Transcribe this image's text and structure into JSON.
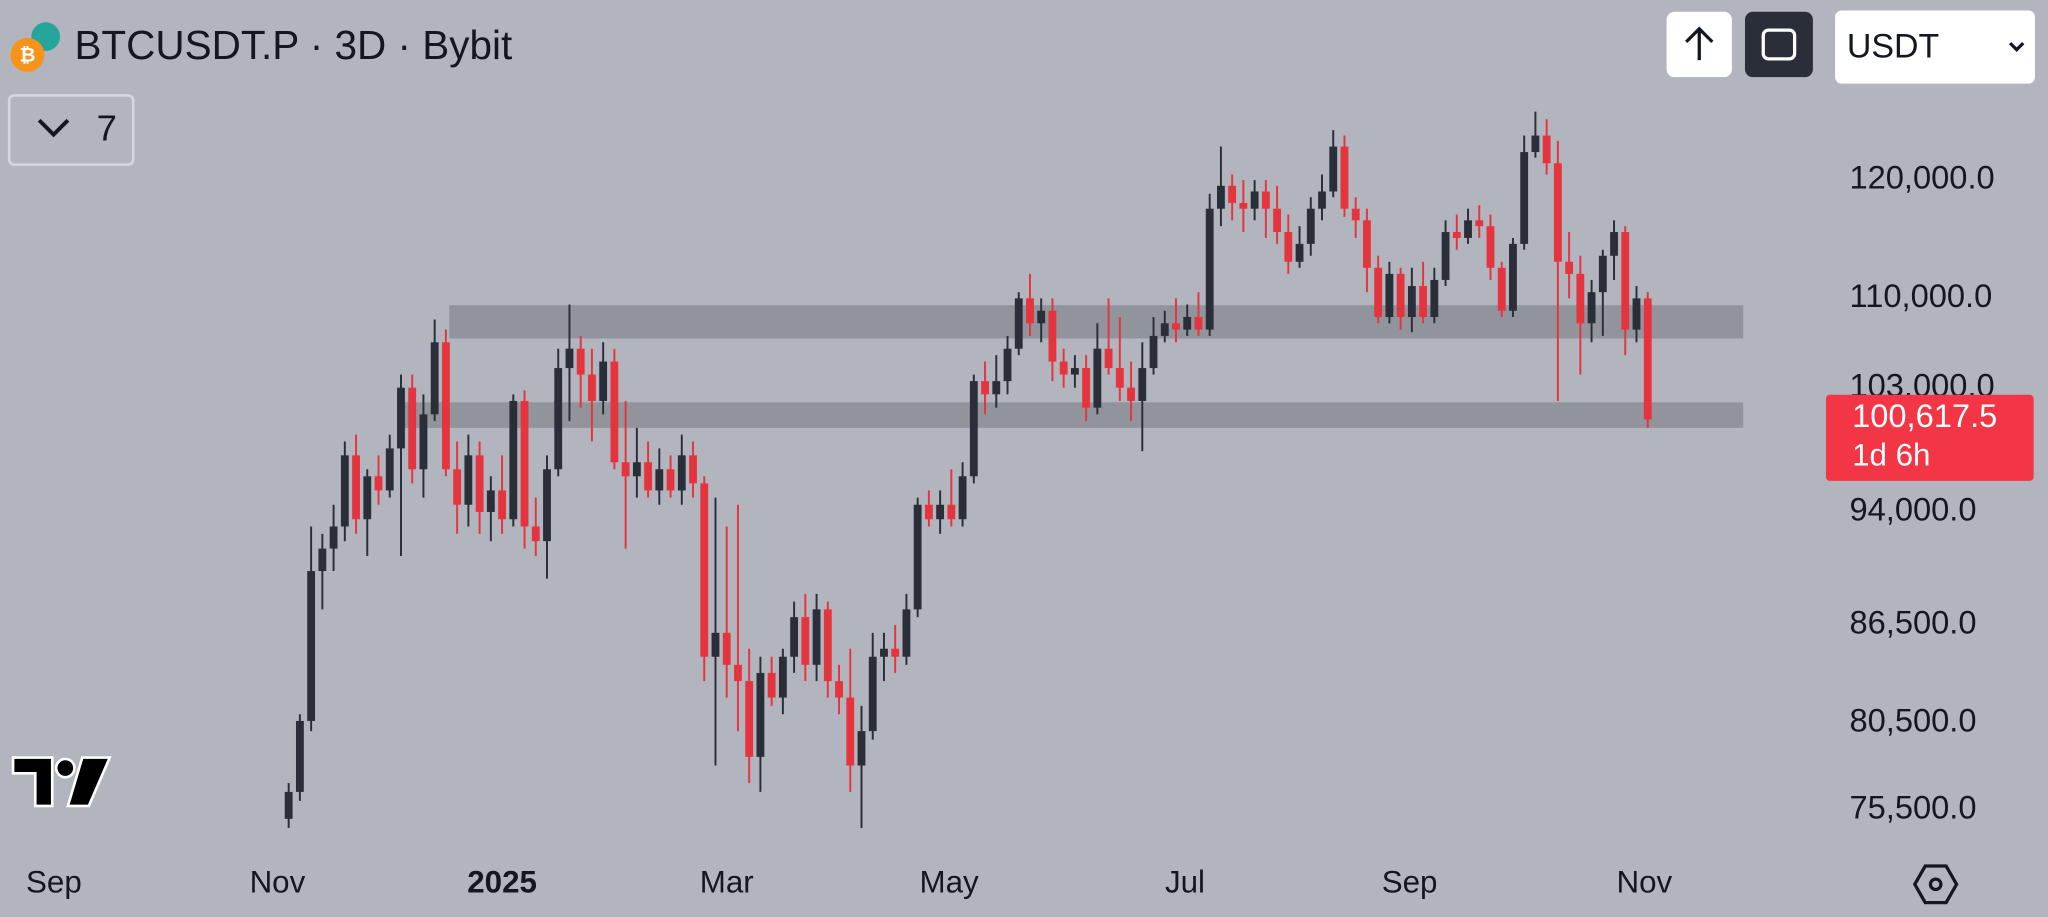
{
  "chart_data": {
    "type": "candlestick",
    "title": "BTCUSDT.P · 3D · Bybit",
    "open": [
      75000,
      76500,
      80600,
      90000,
      91500,
      93000,
      98000,
      93500,
      96500,
      95500,
      98500,
      103000,
      97000,
      101000,
      106500,
      97000,
      94500,
      98000,
      94000,
      95500,
      93500,
      102000,
      93000,
      92000,
      97000,
      104500,
      106000,
      104000,
      102000,
      105000,
      97500,
      96500,
      97500,
      95500,
      97000,
      95500,
      98000,
      96000,
      84500,
      86000,
      84000,
      83000,
      78500,
      83500,
      82000,
      84500,
      87000,
      84000,
      87500,
      83000,
      82000,
      78000,
      80000,
      84500,
      85000,
      84500,
      87500,
      94500,
      93500,
      94500,
      93500,
      96500,
      103500,
      102500,
      103500,
      106000,
      110000,
      108000,
      109000,
      105000,
      104000,
      104500,
      101500,
      106000,
      104500,
      103000,
      102000,
      104500,
      107000,
      108000,
      107500,
      108500,
      107500,
      117500,
      119500,
      118000,
      117500,
      119000,
      117500,
      115500,
      113000,
      114500,
      117500,
      119000,
      123000,
      117500,
      116500,
      112500,
      108500,
      112000,
      108500,
      111000,
      108500,
      111500,
      115500,
      115000,
      116500,
      116000,
      112500,
      109000,
      114500,
      122500,
      124000,
      121500,
      113000,
      112000,
      108000,
      110500,
      113500,
      115500,
      107500,
      110000
    ],
    "high": [
      77000,
      81000,
      93000,
      92500,
      94500,
      99000,
      99500,
      97000,
      98000,
      99500,
      104000,
      104000,
      102500,
      108300,
      107500,
      99000,
      99500,
      99000,
      96500,
      98000,
      102500,
      102800,
      95000,
      98000,
      106000,
      109500,
      107000,
      106000,
      106500,
      106000,
      102000,
      100000,
      99000,
      98500,
      98000,
      99500,
      99000,
      96500,
      95000,
      93000,
      94500,
      85000,
      84500,
      84500,
      85000,
      88000,
      88500,
      88500,
      88000,
      84000,
      85000,
      81500,
      86000,
      86000,
      86500,
      88500,
      95000,
      95500,
      95500,
      97000,
      97500,
      104000,
      105000,
      105500,
      107000,
      110500,
      112000,
      110000,
      110000,
      106000,
      105500,
      105500,
      108000,
      110000,
      108500,
      105000,
      106500,
      108500,
      109000,
      110000,
      109500,
      110500,
      118800,
      123000,
      120500,
      120000,
      120000,
      120000,
      119500,
      117000,
      116000,
      118500,
      120500,
      124500,
      124000,
      118500,
      117500,
      113500,
      113000,
      112500,
      112500,
      113000,
      112500,
      116500,
      117000,
      117500,
      117800,
      117000,
      113000,
      115000,
      124000,
      126200,
      125500,
      123500,
      115500,
      113500,
      111500,
      114000,
      116500,
      116000,
      111000,
      110500
    ],
    "low": [
      74500,
      76000,
      80000,
      87500,
      90000,
      92000,
      92500,
      91000,
      94500,
      95000,
      91000,
      96000,
      95000,
      100500,
      96500,
      92500,
      93000,
      92500,
      92000,
      92500,
      93000,
      91500,
      91000,
      89500,
      96500,
      100500,
      101500,
      99000,
      101000,
      97000,
      91500,
      95000,
      95000,
      94500,
      95000,
      94500,
      95000,
      83000,
      78000,
      82000,
      80000,
      77000,
      76500,
      81500,
      81000,
      83500,
      83000,
      83000,
      82000,
      81000,
      76500,
      74500,
      79500,
      83000,
      83500,
      84000,
      87000,
      93000,
      92500,
      93000,
      93000,
      96000,
      101000,
      101500,
      102500,
      105500,
      107000,
      106500,
      103500,
      103000,
      103000,
      100500,
      101000,
      104000,
      102000,
      100500,
      98300,
      104000,
      106500,
      106500,
      107000,
      107000,
      107000,
      116000,
      116500,
      115500,
      116500,
      115000,
      114500,
      112000,
      112500,
      113500,
      116500,
      118500,
      116800,
      115000,
      110500,
      108000,
      108000,
      107500,
      107300,
      108000,
      108000,
      111000,
      114000,
      114500,
      115000,
      111500,
      108500,
      108500,
      114000,
      122000,
      120500,
      102000,
      110000,
      104000,
      106500,
      107000,
      111500,
      105500,
      106500,
      100000
    ],
    "close": [
      76500,
      80600,
      90000,
      91500,
      93000,
      98000,
      93500,
      96500,
      95500,
      98500,
      103000,
      97000,
      101000,
      106500,
      97000,
      94500,
      98000,
      94000,
      95500,
      93500,
      102000,
      93000,
      92000,
      97000,
      104500,
      106000,
      104000,
      102000,
      105000,
      97500,
      96500,
      97500,
      95500,
      97000,
      95500,
      98000,
      96000,
      84500,
      86000,
      84000,
      83000,
      78500,
      83500,
      82000,
      84500,
      87000,
      84000,
      87500,
      83000,
      82000,
      78000,
      80000,
      84500,
      85000,
      84500,
      87500,
      94500,
      93500,
      94500,
      93500,
      96500,
      103500,
      102500,
      103500,
      106000,
      110000,
      108000,
      109000,
      105000,
      104000,
      104500,
      101500,
      106000,
      104500,
      103000,
      102000,
      104500,
      107000,
      108000,
      107500,
      108500,
      107500,
      117500,
      119500,
      118000,
      117500,
      119000,
      117500,
      115500,
      113000,
      114500,
      117500,
      119000,
      123000,
      117500,
      116500,
      112500,
      108500,
      112000,
      108500,
      111000,
      108500,
      111500,
      115500,
      115000,
      116500,
      116000,
      112500,
      109000,
      114500,
      122500,
      124000,
      121500,
      113000,
      112000,
      108000,
      110500,
      113500,
      115500,
      107500,
      110000,
      100617.5
    ],
    "up_color": "#2a2e39",
    "down_color": "#e5343d",
    "xlim": [
      -25.7,
      137.1
    ],
    "xticks": [
      {
        "value": -20.9,
        "label": "Sep"
      },
      {
        "value": -1.0,
        "label": "Nov"
      },
      {
        "value": 19.0,
        "label": "2025"
      },
      {
        "value": 39.0,
        "label": "Mar"
      },
      {
        "value": 58.8,
        "label": "May"
      },
      {
        "value": 79.8,
        "label": "Jul"
      },
      {
        "value": 99.8,
        "label": "Sep"
      },
      {
        "value": 120.7,
        "label": "Nov"
      }
    ],
    "ylim": [
      73000,
      137000
    ],
    "log_scale": true,
    "grid": false,
    "yticks": [
      {
        "value": 120000,
        "label": "120,000.0"
      },
      {
        "value": 110000,
        "label": "110,000.0"
      },
      {
        "value": 103000,
        "label": "103,000.0"
      },
      {
        "value": 94000,
        "label": "94,000.0"
      },
      {
        "value": 86500,
        "label": "86,500.0"
      },
      {
        "value": 80500,
        "label": "80,500.0"
      },
      {
        "value": 75500,
        "label": "75,500.0"
      }
    ],
    "zones": [
      {
        "from": 106800,
        "to": 109450,
        "x0": 14.3,
        "x1": 129.5
      },
      {
        "from": 100000,
        "to": 101900,
        "x0": 10.1,
        "x1": 129.5
      }
    ],
    "zone_color": "#8c8e97",
    "price_label": {
      "value": 100617.5,
      "label": "100,617.5"
    },
    "countdown": "1d 6h",
    "price_label_color": "#f23645"
  },
  "toolbar": {
    "indicators": "7",
    "currency": "USDT"
  }
}
